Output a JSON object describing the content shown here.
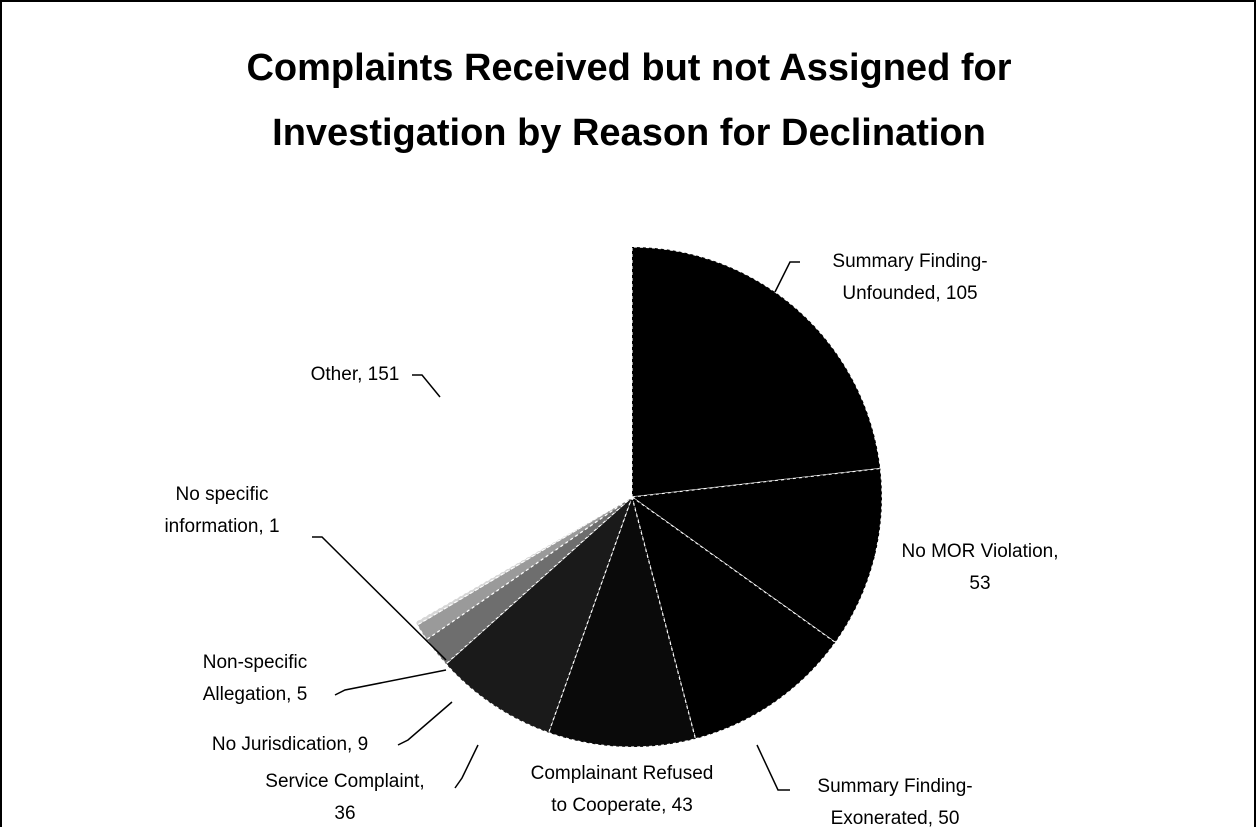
{
  "chart_data": {
    "type": "pie",
    "title": [
      "Complaints Received but not Assigned for",
      "Investigation by Reason for Declination"
    ],
    "values": [
      105,
      53,
      50,
      43,
      36,
      9,
      5,
      1,
      151
    ],
    "value_labels": [
      [
        "Summary Finding-",
        "Unfounded, 105"
      ],
      [
        "No MOR Violation,",
        "53"
      ],
      [
        "Summary Finding-",
        "Exonerated, 50"
      ],
      [
        "Complainant Refused",
        "to Cooperate, 43"
      ],
      [
        "Service Complaint,",
        "36"
      ],
      [
        "No Jurisdication, 9"
      ],
      [
        "Non-specific",
        "Allegation, 5"
      ],
      [
        "No specific",
        "information, 1"
      ],
      [
        "Other, 151"
      ]
    ],
    "colors": [
      "#000000",
      "#000000",
      "#000000",
      "#0a0a0a",
      "#1a1a1a",
      "#6e6e6e",
      "#9a9a9a",
      "#d6d6d6",
      "#ffffff"
    ]
  }
}
